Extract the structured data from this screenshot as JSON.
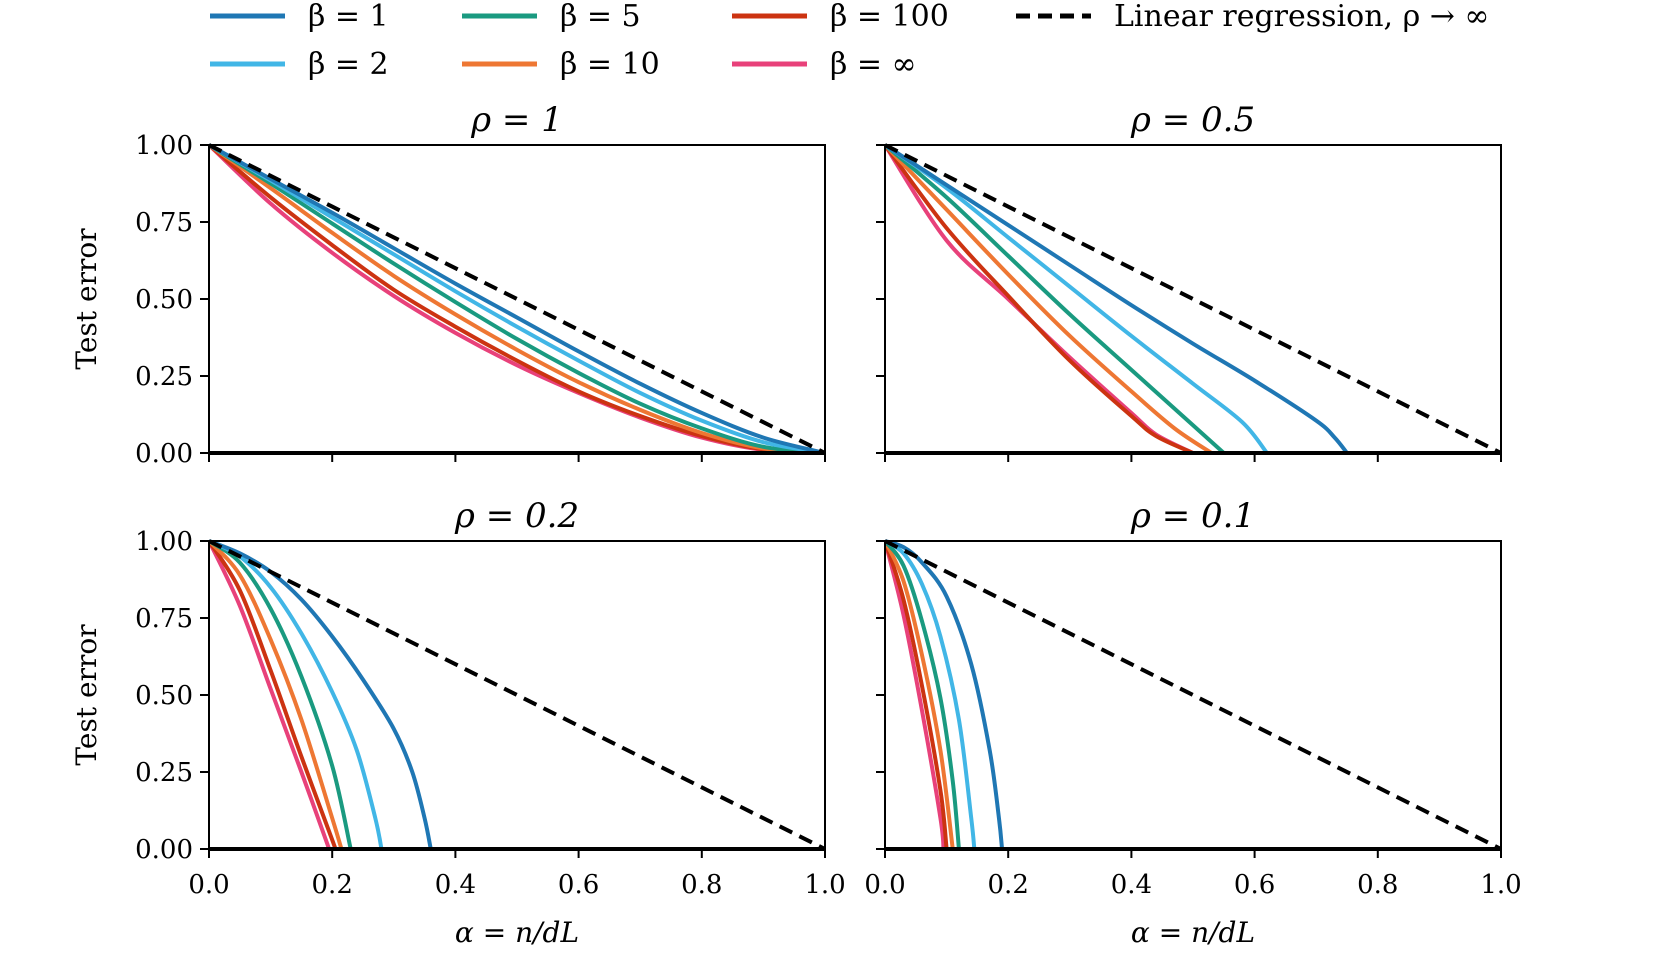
{
  "legend": {
    "entries": [
      {
        "label": "β = 1",
        "color": "#1f77b4"
      },
      {
        "label": "β = 2",
        "color": "#41b6e6"
      },
      {
        "label": "β = 5",
        "color": "#1a9a80"
      },
      {
        "label": "β = 10",
        "color": "#ee7733"
      },
      {
        "label": "β = 100",
        "color": "#cc3311"
      },
      {
        "label": "β = ∞",
        "color": "#e8417a"
      },
      {
        "label": "Linear regression, ρ → ∞",
        "color": "#000000",
        "dashed": true
      }
    ]
  },
  "chart_data": [
    {
      "type": "line",
      "title": "ρ = 1",
      "xlabel": "",
      "ylabel": "Test error",
      "xlim": [
        0,
        1
      ],
      "ylim": [
        0,
        1
      ],
      "x_ticks": [
        "0.0",
        "0.2",
        "0.4",
        "0.6",
        "0.8",
        "1.0"
      ],
      "y_ticks": [
        "0.00",
        "0.25",
        "0.50",
        "0.75",
        "1.00"
      ],
      "show_x_tick_labels": false,
      "show_y_tick_labels": true,
      "x": [
        0,
        0.1,
        0.2,
        0.3,
        0.4,
        0.5,
        0.6,
        0.7,
        0.8,
        0.9,
        1.0
      ],
      "series": [
        {
          "name": "β = 1",
          "values": [
            1,
            0.89,
            0.78,
            0.665,
            0.55,
            0.44,
            0.33,
            0.225,
            0.13,
            0.05,
            0
          ]
        },
        {
          "name": "β = 2",
          "values": [
            1,
            0.885,
            0.765,
            0.645,
            0.525,
            0.41,
            0.3,
            0.195,
            0.105,
            0.035,
            0
          ]
        },
        {
          "name": "β = 5",
          "values": [
            1,
            0.875,
            0.745,
            0.615,
            0.49,
            0.37,
            0.26,
            0.16,
            0.08,
            0.02,
            0
          ]
        },
        {
          "name": "β = 10",
          "values": [
            1,
            0.86,
            0.715,
            0.575,
            0.45,
            0.335,
            0.23,
            0.14,
            0.065,
            0.015,
            0
          ]
        },
        {
          "name": "β = 100",
          "values": [
            1,
            0.83,
            0.675,
            0.53,
            0.41,
            0.3,
            0.2,
            0.12,
            0.055,
            0.012,
            0
          ]
        },
        {
          "name": "β = ∞",
          "values": [
            1,
            0.81,
            0.65,
            0.51,
            0.39,
            0.285,
            0.195,
            0.115,
            0.05,
            0.01,
            0
          ]
        },
        {
          "name": "Linear regression, ρ → ∞",
          "values": [
            1,
            0.9,
            0.8,
            0.7,
            0.6,
            0.5,
            0.4,
            0.3,
            0.2,
            0.1,
            0
          ]
        }
      ]
    },
    {
      "type": "line",
      "title": "ρ = 0.5",
      "xlabel": "",
      "ylabel": "",
      "xlim": [
        0,
        1
      ],
      "ylim": [
        0,
        1
      ],
      "x_ticks": [
        "0.0",
        "0.2",
        "0.4",
        "0.6",
        "0.8",
        "1.0"
      ],
      "y_ticks": [
        "0.00",
        "0.25",
        "0.50",
        "0.75",
        "1.00"
      ],
      "show_x_tick_labels": false,
      "show_y_tick_labels": false,
      "series": [
        {
          "name": "β = 1",
          "x": [
            0,
            0.1,
            0.2,
            0.3,
            0.4,
            0.5,
            0.6,
            0.7,
            0.73,
            0.75
          ],
          "values": [
            1,
            0.87,
            0.74,
            0.61,
            0.48,
            0.355,
            0.235,
            0.105,
            0.05,
            0
          ]
        },
        {
          "name": "β = 2",
          "x": [
            0,
            0.1,
            0.2,
            0.3,
            0.4,
            0.5,
            0.58,
            0.62
          ],
          "values": [
            1,
            0.86,
            0.7,
            0.54,
            0.38,
            0.225,
            0.1,
            0
          ]
        },
        {
          "name": "β = 5",
          "x": [
            0,
            0.1,
            0.2,
            0.3,
            0.4,
            0.5,
            0.55
          ],
          "values": [
            1,
            0.83,
            0.64,
            0.45,
            0.27,
            0.09,
            0
          ]
        },
        {
          "name": "β = 10",
          "x": [
            0,
            0.1,
            0.2,
            0.3,
            0.4,
            0.47,
            0.53
          ],
          "values": [
            1,
            0.79,
            0.58,
            0.38,
            0.2,
            0.08,
            0
          ]
        },
        {
          "name": "β = 100",
          "x": [
            0,
            0.1,
            0.2,
            0.3,
            0.4,
            0.44,
            0.5
          ],
          "values": [
            1,
            0.73,
            0.51,
            0.3,
            0.12,
            0.055,
            0
          ]
        },
        {
          "name": "β = ∞",
          "x": [
            0,
            0.1,
            0.2,
            0.3,
            0.4,
            0.44,
            0.5
          ],
          "values": [
            1,
            0.69,
            0.5,
            0.31,
            0.13,
            0.06,
            0
          ]
        },
        {
          "name": "Linear regression, ρ → ∞",
          "x": [
            0,
            1
          ],
          "values": [
            1,
            0
          ]
        }
      ]
    },
    {
      "type": "line",
      "title": "ρ = 0.2",
      "xlabel": "α = n/dL",
      "ylabel": "Test error",
      "xlim": [
        0,
        1
      ],
      "ylim": [
        0,
        1
      ],
      "x_ticks": [
        "0.0",
        "0.2",
        "0.4",
        "0.6",
        "0.8",
        "1.0"
      ],
      "y_ticks": [
        "0.00",
        "0.25",
        "0.50",
        "0.75",
        "1.00"
      ],
      "show_x_tick_labels": true,
      "show_y_tick_labels": true,
      "series": [
        {
          "name": "β = 1",
          "x": [
            0,
            0.05,
            0.1,
            0.15,
            0.2,
            0.25,
            0.3,
            0.33,
            0.35,
            0.36
          ],
          "values": [
            1,
            0.96,
            0.9,
            0.81,
            0.69,
            0.55,
            0.39,
            0.25,
            0.1,
            0
          ]
        },
        {
          "name": "β = 2",
          "x": [
            0,
            0.05,
            0.1,
            0.15,
            0.2,
            0.24,
            0.27,
            0.28
          ],
          "values": [
            1,
            0.95,
            0.85,
            0.7,
            0.51,
            0.32,
            0.1,
            0
          ]
        },
        {
          "name": "β = 5",
          "x": [
            0,
            0.05,
            0.1,
            0.15,
            0.2,
            0.23
          ],
          "values": [
            1,
            0.93,
            0.78,
            0.56,
            0.27,
            0
          ]
        },
        {
          "name": "β = 10",
          "x": [
            0,
            0.05,
            0.1,
            0.15,
            0.2,
            0.215
          ],
          "values": [
            1,
            0.89,
            0.68,
            0.42,
            0.1,
            0
          ]
        },
        {
          "name": "β = 100",
          "x": [
            0,
            0.05,
            0.1,
            0.15,
            0.2,
            0.205
          ],
          "values": [
            1,
            0.84,
            0.58,
            0.3,
            0.03,
            0
          ]
        },
        {
          "name": "β = ∞",
          "x": [
            0,
            0.05,
            0.1,
            0.15,
            0.195
          ],
          "values": [
            1,
            0.79,
            0.52,
            0.25,
            0
          ]
        },
        {
          "name": "Linear regression, ρ → ∞",
          "x": [
            0,
            1
          ],
          "values": [
            1,
            0
          ]
        }
      ]
    },
    {
      "type": "line",
      "title": "ρ = 0.1",
      "xlabel": "α = n/dL",
      "ylabel": "",
      "xlim": [
        0,
        1
      ],
      "ylim": [
        0,
        1
      ],
      "x_ticks": [
        "0.0",
        "0.2",
        "0.4",
        "0.6",
        "0.8",
        "1.0"
      ],
      "y_ticks": [
        "0.00",
        "0.25",
        "0.50",
        "0.75",
        "1.00"
      ],
      "show_x_tick_labels": true,
      "show_y_tick_labels": false,
      "series": [
        {
          "name": "β = 1",
          "x": [
            0,
            0.03,
            0.06,
            0.1,
            0.14,
            0.17,
            0.185,
            0.19
          ],
          "values": [
            1,
            0.98,
            0.93,
            0.82,
            0.6,
            0.32,
            0.1,
            0
          ]
        },
        {
          "name": "β = 2",
          "x": [
            0,
            0.03,
            0.06,
            0.09,
            0.12,
            0.14,
            0.145
          ],
          "values": [
            1,
            0.96,
            0.86,
            0.69,
            0.42,
            0.1,
            0
          ]
        },
        {
          "name": "β = 5",
          "x": [
            0,
            0.03,
            0.06,
            0.09,
            0.11,
            0.12
          ],
          "values": [
            1,
            0.92,
            0.74,
            0.49,
            0.22,
            0
          ]
        },
        {
          "name": "β = 10",
          "x": [
            0,
            0.03,
            0.06,
            0.09,
            0.11
          ],
          "values": [
            1,
            0.87,
            0.63,
            0.32,
            0
          ]
        },
        {
          "name": "β = 100",
          "x": [
            0,
            0.03,
            0.06,
            0.09,
            0.1
          ],
          "values": [
            1,
            0.81,
            0.53,
            0.19,
            0
          ]
        },
        {
          "name": "β = ∞",
          "x": [
            0,
            0.03,
            0.06,
            0.09,
            0.095
          ],
          "values": [
            1,
            0.76,
            0.45,
            0.1,
            0
          ]
        },
        {
          "name": "Linear regression, ρ → ∞",
          "x": [
            0,
            1
          ],
          "values": [
            1,
            0
          ]
        }
      ]
    }
  ]
}
